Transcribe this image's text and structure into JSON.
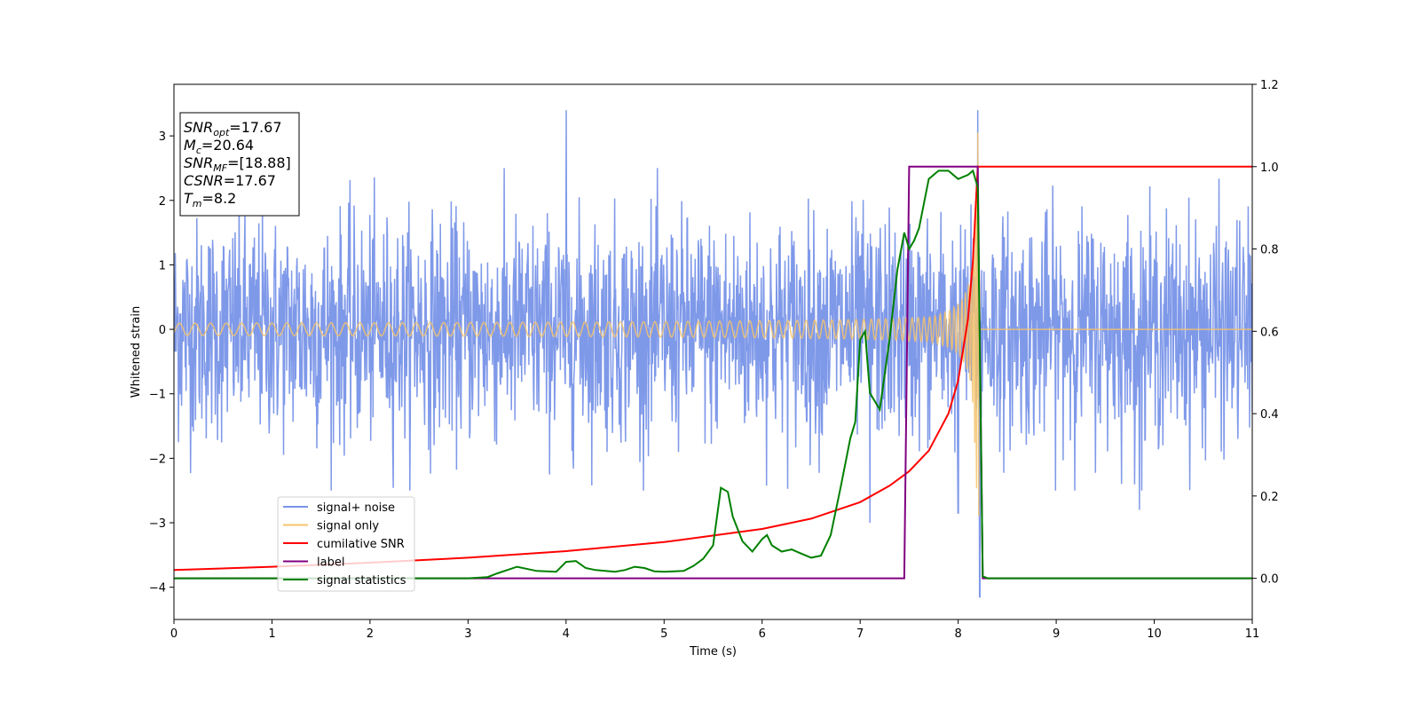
{
  "chart_data": {
    "type": "line",
    "xlabel": "Time (s)",
    "ylabel": "Whitened strain",
    "xlim": [
      0,
      11
    ],
    "ylim_left": [
      -4.5,
      3.8
    ],
    "ylim_right": [
      -0.1,
      1.2
    ],
    "x_ticks": [
      0,
      1,
      2,
      3,
      4,
      5,
      6,
      7,
      8,
      9,
      10,
      11
    ],
    "x_tick_labels": [
      "0",
      "1",
      "2",
      "3",
      "4",
      "5",
      "6",
      "7",
      "8",
      "9",
      "10",
      "11"
    ],
    "y_left_ticks": [
      -4,
      -3,
      -2,
      -1,
      0,
      1,
      2,
      3
    ],
    "y_left_tick_labels": [
      "−4",
      "−3",
      "−2",
      "−1",
      "0",
      "1",
      "2",
      "3"
    ],
    "y_right_ticks": [
      0.0,
      0.2,
      0.4,
      0.6,
      0.8,
      1.0,
      1.2
    ],
    "y_right_tick_labels": [
      "0.0",
      "0.2",
      "0.4",
      "0.6",
      "0.8",
      "1.0",
      "1.2"
    ],
    "grid": false,
    "legend_position": "lower-left",
    "info_box": {
      "position": "top-left",
      "lines": [
        {
          "main": "SNR",
          "sub": "opt",
          "value": "=17.67"
        },
        {
          "main": "M",
          "sub": "c",
          "value": "=20.64"
        },
        {
          "main": "SNR",
          "sub": "MF",
          "value": "=[18.88]"
        },
        {
          "main": "CSNR",
          "sub": "",
          "value": "=17.67"
        },
        {
          "main": "T",
          "sub": "m",
          "value": "=8.2"
        }
      ]
    },
    "series": [
      {
        "name": "signal+ noise",
        "axis": "left",
        "color": "#7893e8",
        "kind": "noise",
        "noise_range": [
          -2.5,
          2.5
        ],
        "spikes": [
          [
            4.0,
            3.4
          ],
          [
            8.2,
            3.4
          ],
          [
            8.22,
            -4.15
          ],
          [
            7.1,
            -3.0
          ],
          [
            8.0,
            -2.85
          ],
          [
            9.85,
            -2.8
          ]
        ]
      },
      {
        "name": "signal only",
        "axis": "left",
        "color": "#f5c36b",
        "kind": "chirp",
        "merger_time": 8.2,
        "peak": 3.05,
        "min_peak": -2.9
      },
      {
        "name": "cumilative SNR",
        "axis": "right",
        "color": "#ff0000",
        "points": [
          [
            0,
            0.02
          ],
          [
            1,
            0.028
          ],
          [
            2,
            0.038
          ],
          [
            3,
            0.05
          ],
          [
            4,
            0.066
          ],
          [
            5,
            0.088
          ],
          [
            6,
            0.12
          ],
          [
            6.5,
            0.145
          ],
          [
            7,
            0.185
          ],
          [
            7.3,
            0.225
          ],
          [
            7.5,
            0.26
          ],
          [
            7.7,
            0.31
          ],
          [
            7.9,
            0.4
          ],
          [
            8.0,
            0.48
          ],
          [
            8.1,
            0.63
          ],
          [
            8.15,
            0.77
          ],
          [
            8.2,
            1.0
          ],
          [
            11,
            1.0
          ]
        ]
      },
      {
        "name": "label",
        "axis": "right",
        "color": "#800080",
        "points": [
          [
            0,
            0.0
          ],
          [
            7.45,
            0.0
          ],
          [
            7.5,
            1.0
          ],
          [
            8.2,
            1.0
          ],
          [
            8.25,
            0.0
          ],
          [
            11,
            0.0
          ]
        ]
      },
      {
        "name": "signal statistics",
        "axis": "right",
        "color": "#008000",
        "points": [
          [
            0,
            0.0
          ],
          [
            3.0,
            0.0
          ],
          [
            3.2,
            0.003
          ],
          [
            3.3,
            0.012
          ],
          [
            3.5,
            0.028
          ],
          [
            3.7,
            0.018
          ],
          [
            3.9,
            0.016
          ],
          [
            4.0,
            0.04
          ],
          [
            4.1,
            0.042
          ],
          [
            4.2,
            0.025
          ],
          [
            4.3,
            0.02
          ],
          [
            4.4,
            0.018
          ],
          [
            4.5,
            0.016
          ],
          [
            4.6,
            0.02
          ],
          [
            4.7,
            0.028
          ],
          [
            4.8,
            0.025
          ],
          [
            4.9,
            0.017
          ],
          [
            5.0,
            0.016
          ],
          [
            5.2,
            0.018
          ],
          [
            5.3,
            0.03
          ],
          [
            5.4,
            0.048
          ],
          [
            5.5,
            0.08
          ],
          [
            5.58,
            0.22
          ],
          [
            5.65,
            0.21
          ],
          [
            5.7,
            0.15
          ],
          [
            5.8,
            0.09
          ],
          [
            5.9,
            0.065
          ],
          [
            6.0,
            0.095
          ],
          [
            6.05,
            0.105
          ],
          [
            6.1,
            0.08
          ],
          [
            6.2,
            0.065
          ],
          [
            6.3,
            0.07
          ],
          [
            6.4,
            0.06
          ],
          [
            6.5,
            0.05
          ],
          [
            6.6,
            0.055
          ],
          [
            6.7,
            0.105
          ],
          [
            6.8,
            0.22
          ],
          [
            6.9,
            0.34
          ],
          [
            6.95,
            0.38
          ],
          [
            7.0,
            0.58
          ],
          [
            7.05,
            0.6
          ],
          [
            7.1,
            0.45
          ],
          [
            7.2,
            0.41
          ],
          [
            7.3,
            0.58
          ],
          [
            7.38,
            0.75
          ],
          [
            7.45,
            0.84
          ],
          [
            7.5,
            0.8
          ],
          [
            7.55,
            0.82
          ],
          [
            7.6,
            0.85
          ],
          [
            7.7,
            0.97
          ],
          [
            7.8,
            0.99
          ],
          [
            7.9,
            0.99
          ],
          [
            8.0,
            0.97
          ],
          [
            8.1,
            0.98
          ],
          [
            8.15,
            0.99
          ],
          [
            8.2,
            0.95
          ],
          [
            8.25,
            0.005
          ],
          [
            8.3,
            0.0
          ],
          [
            11,
            0.0
          ]
        ]
      }
    ]
  }
}
